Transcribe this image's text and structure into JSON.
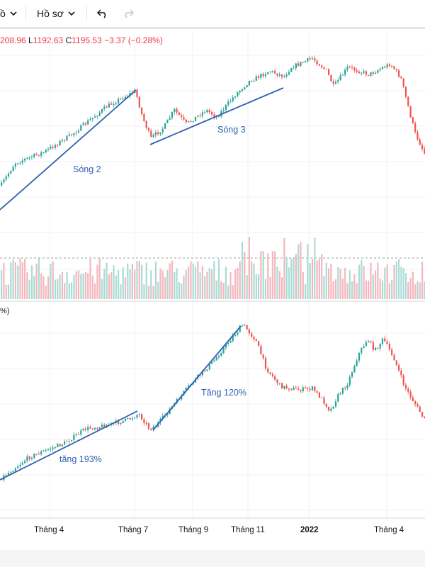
{
  "toolbar": {
    "left_char": "ồ",
    "profile_label": "Hồ sơ",
    "undo_icon": "undo-icon",
    "redo_icon": "redo-icon"
  },
  "legend": {
    "open_val": "208.96",
    "low_key": "L",
    "low_val": "1192.63",
    "close_key": "C",
    "close_val": "1195.53",
    "change": "−3.37 (−0.28%)"
  },
  "lower_pane": {
    "unit_label": "%)"
  },
  "annotations": {
    "wave2": "Sóng 2",
    "wave3": "Sóng 3",
    "rise193": "tăng 193%",
    "rise120": "Tăng 120%"
  },
  "x_axis": [
    "Tháng 4",
    "Tháng 7",
    "Tháng 9",
    "Tháng 11",
    "2022",
    "Tháng 4"
  ],
  "colors": {
    "up": "#26a69a",
    "down": "#ef5350",
    "trendline": "#2f5fb3",
    "volume_up": "#aadcd5",
    "volume_down": "#f4b7bd"
  }
}
